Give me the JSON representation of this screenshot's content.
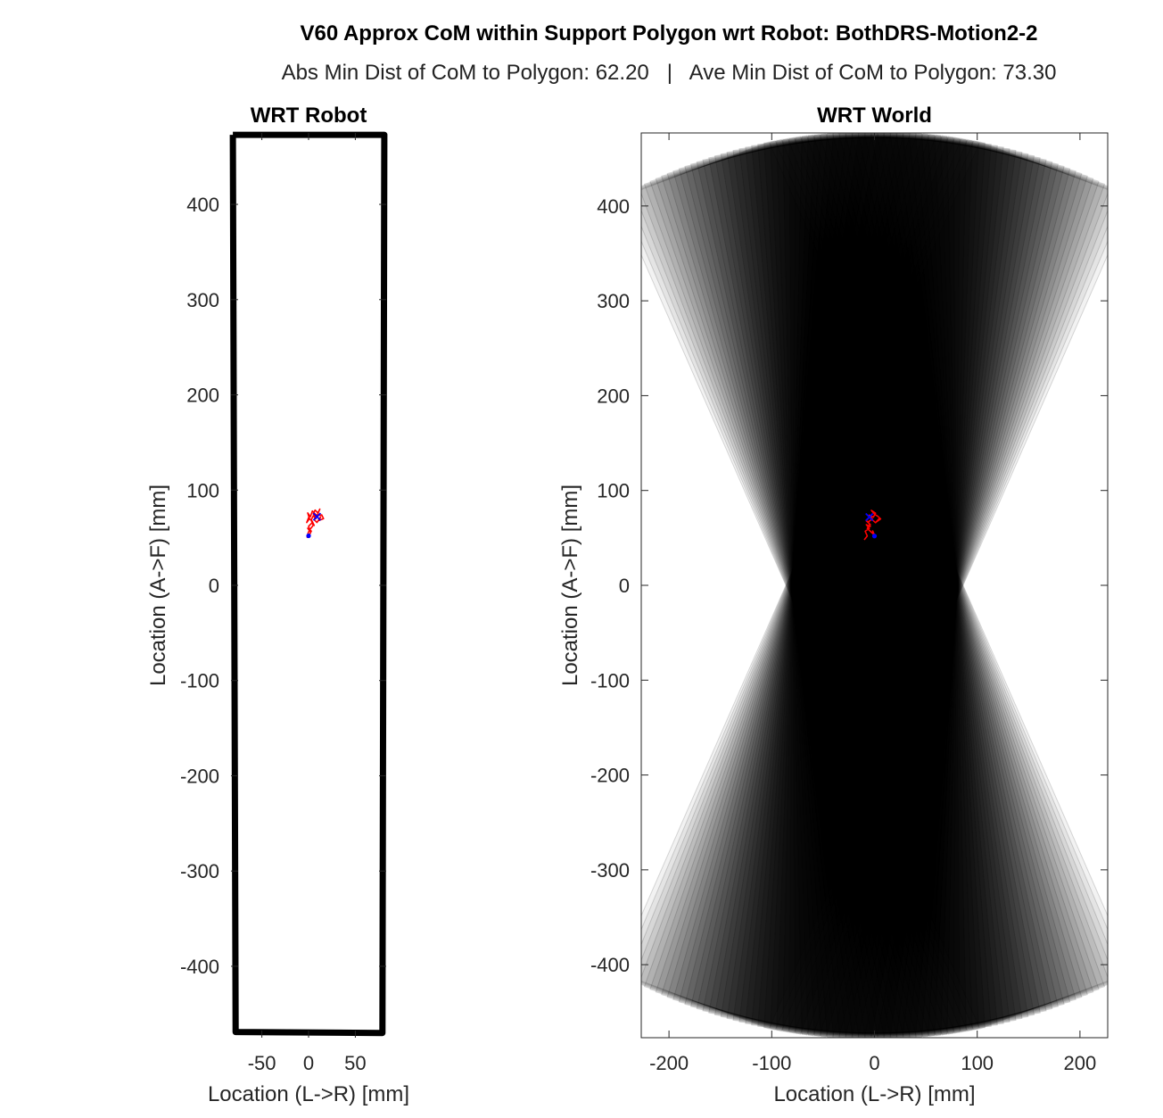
{
  "figure": {
    "title": "V60 Approx CoM within Support Polygon wrt Robot: BothDRS-Motion2-2",
    "subtitle": "Abs Min Dist of CoM to Polygon: 62.20   |   Ave Min Dist of CoM to Polygon: 73.30"
  },
  "chart_data": [
    {
      "type": "line",
      "title": "WRT Robot",
      "xlabel": "Location (L->R) [mm]",
      "ylabel": "Location (A->F) [mm]",
      "xlim": [
        -83,
        83
      ],
      "ylim": [
        -475,
        475
      ],
      "xticks": [
        -50,
        0,
        50
      ],
      "yticks": [
        -400,
        -300,
        -200,
        -100,
        0,
        100,
        200,
        300,
        400
      ],
      "grid": false,
      "support_polygon": {
        "color": "#000000",
        "x": [
          -81,
          81,
          79,
          -78,
          -81
        ],
        "y": [
          473,
          473,
          -470,
          -469,
          473
        ]
      },
      "com_trace": {
        "color": "#ff0000",
        "x": [
          -2,
          1,
          3,
          -1,
          2,
          0,
          4,
          6,
          3,
          5,
          8,
          5,
          7,
          10,
          12,
          9,
          14,
          16,
          11,
          13,
          9,
          6,
          8,
          4,
          2,
          -1,
          1,
          -2,
          0,
          3,
          5,
          1,
          -1
        ],
        "y": [
          50,
          53,
          57,
          60,
          56,
          62,
          66,
          63,
          69,
          73,
          70,
          75,
          79,
          76,
          80,
          73,
          74,
          70,
          68,
          72,
          66,
          69,
          74,
          78,
          72,
          76,
          70,
          66,
          71,
          68,
          63,
          58,
          54
        ]
      },
      "markers": [
        {
          "shape": "dot",
          "color": "#0000ff",
          "x": 0,
          "y": 52
        },
        {
          "shape": "x",
          "color": "#0000ff",
          "x": 9,
          "y": 72
        }
      ]
    },
    {
      "type": "line",
      "title": "WRT World",
      "xlabel": "Location (L->R) [mm]",
      "ylabel": "Location (A->F) [mm]",
      "xlim": [
        -227,
        227
      ],
      "ylim": [
        -477,
        477
      ],
      "xticks": [
        -200,
        -100,
        0,
        100,
        200
      ],
      "yticks": [
        -400,
        -300,
        -200,
        -100,
        0,
        100,
        200,
        300,
        400
      ],
      "grid": false,
      "rotated_polygons": {
        "color": "#000000",
        "half_width": 80,
        "half_length": 472,
        "angle_deg_min": -22,
        "angle_deg_max": 22,
        "count": 60
      },
      "com_trace": {
        "color": "#ff0000",
        "x": [
          -10,
          -7,
          -9,
          -5,
          -8,
          -4,
          -6,
          -2,
          -5,
          -1,
          1,
          -3,
          0,
          3,
          6,
          2,
          5,
          1,
          -2,
          -5,
          -8,
          -4,
          -7,
          -3,
          0,
          -2
        ],
        "y": [
          48,
          52,
          57,
          60,
          64,
          62,
          67,
          70,
          74,
          72,
          76,
          79,
          75,
          73,
          70,
          67,
          71,
          66,
          69,
          72,
          68,
          64,
          60,
          56,
          53,
          58
        ]
      },
      "markers": [
        {
          "shape": "dot",
          "color": "#0000ff",
          "x": 0,
          "y": 52
        },
        {
          "shape": "x",
          "color": "#0000ff",
          "x": -5,
          "y": 72
        }
      ]
    }
  ]
}
